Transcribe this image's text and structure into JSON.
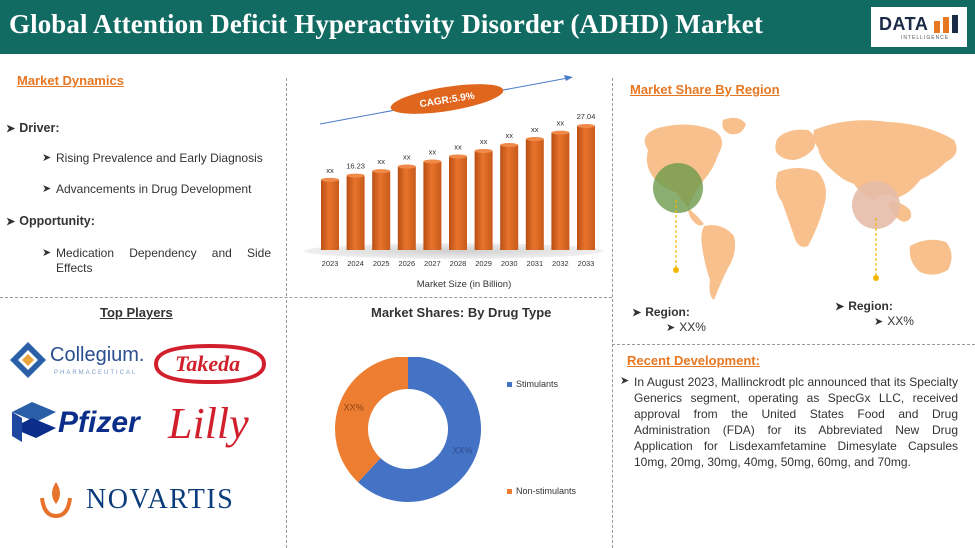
{
  "header": {
    "title": "Global Attention Deficit Hyperactivity Disorder (ADHD) Market",
    "logo_text": "DATA",
    "logo_sub": "INTELLIGENCE"
  },
  "market_dynamics": {
    "heading": "Market Dynamics",
    "driver_label": "Driver:",
    "drivers": [
      "Rising Prevalence and Early Diagnosis",
      "Advancements in Drug Development"
    ],
    "opportunity_label": "Opportunity:",
    "opportunities": [
      "Medication Dependency and Side Effects"
    ]
  },
  "market_size_chart": {
    "cagr_label": "CAGR:5.9%",
    "xlabel": "Market Size (in Billion)"
  },
  "chart_data": [
    {
      "type": "bar",
      "title": "",
      "xlabel": "Market Size (in Billion)",
      "ylabel": "",
      "categories": [
        "2023",
        "2024",
        "2025",
        "2026",
        "2027",
        "2028",
        "2029",
        "2030",
        "2031",
        "2032",
        "2033"
      ],
      "values": [
        15.3,
        16.23,
        17.2,
        18.2,
        19.3,
        20.4,
        21.6,
        22.9,
        24.2,
        25.6,
        27.04
      ],
      "data_labels": [
        "xx",
        "16.23",
        "xx",
        "xx",
        "xx",
        "xx",
        "xx",
        "xx",
        "xx",
        "xx",
        "27.04"
      ],
      "bar_color": "#d9631e",
      "grid": false
    },
    {
      "type": "pie",
      "title": "Market Shares: By Drug Type",
      "categories": [
        "Stimulants",
        "Non-stimulants"
      ],
      "values": [
        62,
        38
      ],
      "data_labels": [
        "XX%",
        "XX%"
      ],
      "colors": [
        "#4472c4",
        "#ed7d31"
      ],
      "donut": true,
      "legend": "right"
    }
  ],
  "top_players": {
    "heading": "Top Players",
    "companies": {
      "collegium": "Collegium.",
      "collegium_sub": "PHARMACEUTICAL",
      "takeda": "Takeda",
      "pfizer": "Pfizer",
      "lilly": "Lilly",
      "novartis": "NOVARTIS"
    }
  },
  "drug_type": {
    "heading": "Market Shares: By Drug Type",
    "legend": [
      "Stimulants",
      "Non-stimulants"
    ],
    "slice_labels": [
      "XX%",
      "XX%"
    ]
  },
  "region": {
    "heading": "Market Share By Region",
    "left_label": "Region:",
    "left_value": "XX%",
    "right_label": "Region:",
    "right_value": "XX%"
  },
  "recent_development": {
    "heading": "Recent Development:",
    "text": "In August 2023, Mallinckrodt plc announced that its Specialty Generics segment, operating as SpecGx LLC, received approval from the United States Food and Drug Administration (FDA) for its Abbreviated New Drug Application for Lisdexamfetamine Dimesylate Capsules 10mg, 20mg, 30mg, 40mg, 50mg, 60mg, and 70mg."
  },
  "colors": {
    "header_bg": "#126b63",
    "accent": "#e87722",
    "bar": "#d9631e",
    "map": "#f7c08d",
    "stimulants": "#4472c4",
    "non_stimulants": "#ed7d31"
  }
}
